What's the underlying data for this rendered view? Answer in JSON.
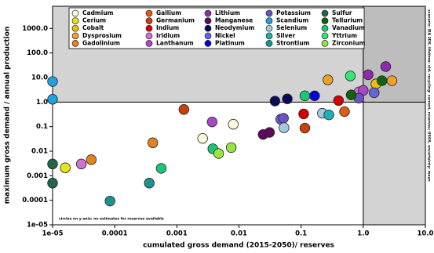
{
  "chart_data": {
    "type": "scatter",
    "x_label": "cumulated gross demand (2015-2050)/ reserves",
    "y_label": "maximum gross demand / annual production",
    "annotation": "circles on y-axis: no estimates for reserves available",
    "side_note": "scenario: IEA 2DS, lifetime: std, recycling: current, reserves: USGS, uncertainty: mean",
    "log_x": true,
    "log_y": true,
    "xlim": [
      1e-05,
      10
    ],
    "ylim": [
      1e-05,
      8000
    ],
    "xticks": [
      {
        "value": 1e-05,
        "label": "1e-05"
      },
      0.0001,
      0.001,
      0.01,
      0.1,
      {
        "value": 1,
        "label": "1.0"
      },
      {
        "value": 10,
        "label": "10.0"
      }
    ],
    "yticks": [
      {
        "value": 1e-05,
        "label": "1e-05"
      },
      0.0001,
      0.001,
      0.01,
      0.1,
      {
        "value": 1,
        "label": "1.0"
      },
      {
        "value": 10,
        "label": "10.0"
      },
      {
        "value": 100,
        "label": "100.0"
      },
      {
        "value": 1000,
        "label": "1000.0"
      }
    ],
    "critical_x": 1,
    "critical_y": 1,
    "shade_color": "#d3d3d3",
    "overlap_color": "#bdbdbd",
    "legend": "upper center",
    "series": [
      {
        "name": "Cadmium",
        "color": "#fbf8dc",
        "x": [
          0.0026,
          0.0081
        ],
        "values": [
          0.033,
          0.125
        ]
      },
      {
        "name": "Cerium",
        "color": "#e8e41c",
        "x": [
          1.6e-05
        ],
        "values": [
          0.0021
        ]
      },
      {
        "name": "Cobalt",
        "color": "#f0c000",
        "x": [
          1.6
        ],
        "values": [
          5.5
        ]
      },
      {
        "name": "Dysprosium",
        "color": "#eda02a",
        "x": [
          0.27,
          2.9
        ],
        "values": [
          8,
          7.4
        ]
      },
      {
        "name": "Gadolinium",
        "color": "#e38220",
        "x": [
          4.2e-05,
          0.00041
        ],
        "values": [
          0.0045,
          0.022
        ]
      },
      {
        "name": "Gallium",
        "color": "#e05a14",
        "x": [
          0.5
        ],
        "values": [
          0.41
        ]
      },
      {
        "name": "Germanium",
        "color": "#c8400c",
        "x": [
          0.0013,
          0.115
        ],
        "values": [
          0.5,
          0.087
        ]
      },
      {
        "name": "Indium",
        "color": "#d40000",
        "x": [
          0.11,
          0.4
        ],
        "values": [
          0.33,
          1.15
        ]
      },
      {
        "name": "Iridium",
        "color": "#d070d0",
        "x": [
          2.9e-05,
          0.85
        ],
        "values": [
          0.003,
          2.6
        ]
      },
      {
        "name": "Lanthanum",
        "color": "#a848c8",
        "x": [
          0.0037,
          1.0
        ],
        "values": [
          0.155,
          3
        ]
      },
      {
        "name": "Lithium",
        "color": "#8e2ab0",
        "x": [
          1.2,
          2.3
        ],
        "values": [
          13,
          28
        ]
      },
      {
        "name": "Manganese",
        "color": "#5c0a5c",
        "x": [
          0.0245,
          0.031
        ],
        "values": [
          0.048,
          0.058
        ]
      },
      {
        "name": "Neodymium",
        "color": "#0a0a5a",
        "x": [
          0.038,
          0.06
        ],
        "values": [
          1.1,
          1.35
        ]
      },
      {
        "name": "Nickel",
        "color": "#6464d8",
        "x": [
          0.047,
          1.5
        ],
        "values": [
          0.2,
          2.4
        ]
      },
      {
        "name": "Platinum",
        "color": "#0000d8",
        "x": [
          0.165
        ],
        "values": [
          1.8
        ]
      },
      {
        "name": "Potassium",
        "color": "#6a52c4",
        "x": [
          0.052,
          0.85
        ],
        "values": [
          0.22,
          1.45
        ]
      },
      {
        "name": "Scandium",
        "color": "#22a0e0",
        "x": [
          1e-05,
          1e-05
        ],
        "values": [
          6.9,
          1.3
        ]
      },
      {
        "name": "Selenium",
        "color": "#a4c8e0",
        "x": [
          0.053,
          0.22
        ],
        "values": [
          0.09,
          0.35
        ]
      },
      {
        "name": "Silver",
        "color": "#1eb0b4",
        "x": [
          0.28
        ],
        "values": [
          0.3
        ]
      },
      {
        "name": "Strontium",
        "color": "#1f9090",
        "x": [
          8.4e-05,
          0.00036
        ],
        "values": [
          9.3e-05,
          0.0005
        ]
      },
      {
        "name": "Sulfur",
        "color": "#22664a",
        "x": [
          1e-05,
          1e-05
        ],
        "values": [
          0.003,
          0.0005
        ]
      },
      {
        "name": "Tellurium",
        "color": "#0e640e",
        "x": [
          0.64,
          2.0
        ],
        "values": [
          1.95,
          7.4
        ]
      },
      {
        "name": "Vanadium",
        "color": "#18c878",
        "x": [
          0.00056,
          0.0038,
          0.115
        ],
        "values": [
          0.002,
          0.0125,
          1.8
        ]
      },
      {
        "name": "Yttrium",
        "color": "#34e67a",
        "x": [
          0.62
        ],
        "values": [
          11.6
        ]
      },
      {
        "name": "Zirconium",
        "color": "#96e442",
        "x": [
          0.0047,
          0.0075
        ],
        "values": [
          0.008,
          0.014
        ]
      }
    ]
  }
}
